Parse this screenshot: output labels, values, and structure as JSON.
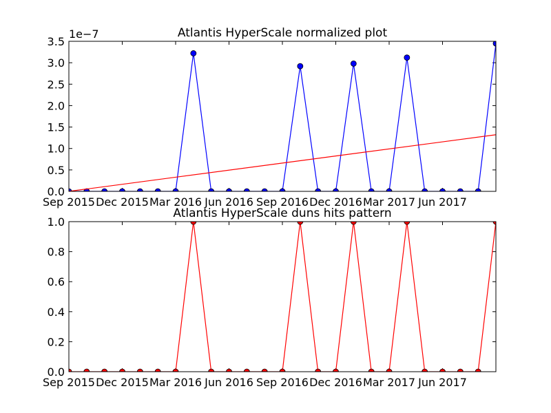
{
  "chart_data": [
    {
      "type": "line",
      "title": "Atlantis HyperScale normalized plot",
      "xlabel": "",
      "ylabel": "",
      "y_offset_label": "1e−7",
      "ylim": [
        0,
        3.5
      ],
      "yticks": [
        "0.0",
        "0.5",
        "1.0",
        "1.5",
        "2.0",
        "2.5",
        "3.0",
        "3.5"
      ],
      "xticks": [
        "Sep 2015",
        "Dec 2015",
        "Mar 2016",
        "Jun 2016",
        "Sep 2016",
        "Dec 2016",
        "Mar 2017",
        "Jun 2017"
      ],
      "xlim": [
        "2015-09-01",
        "2017-09-01"
      ],
      "grid": false,
      "series": [
        {
          "color": "#0000ff",
          "marker": "circle",
          "x": [
            "2015-09-01",
            "2015-10-01",
            "2015-11-01",
            "2015-12-01",
            "2016-01-01",
            "2016-02-01",
            "2016-03-01",
            "2016-04-01",
            "2016-05-01",
            "2016-06-01",
            "2016-07-01",
            "2016-08-01",
            "2016-09-01",
            "2016-10-01",
            "2016-11-01",
            "2016-12-01",
            "2017-01-01",
            "2017-02-01",
            "2017-03-01",
            "2017-04-01",
            "2017-05-01",
            "2017-06-01",
            "2017-07-01",
            "2017-08-01",
            "2017-09-01"
          ],
          "values": [
            0,
            0,
            0,
            0,
            0,
            0,
            0,
            3.22,
            0,
            0,
            0,
            0,
            0,
            2.92,
            0,
            0,
            2.98,
            0,
            0,
            3.12,
            0,
            0,
            0,
            0,
            3.45
          ]
        },
        {
          "color": "#ff0000",
          "marker": "none",
          "x": [
            "2015-09-01",
            "2017-09-01"
          ],
          "values": [
            0,
            1.32
          ]
        }
      ]
    },
    {
      "type": "line",
      "title": "Atlantis HyperScale duns hits pattern",
      "xlabel": "",
      "ylabel": "",
      "ylim": [
        0,
        1.0
      ],
      "yticks": [
        "0.0",
        "0.2",
        "0.4",
        "0.6",
        "0.8",
        "1.0"
      ],
      "xticks": [
        "Sep 2015",
        "Dec 2015",
        "Mar 2016",
        "Jun 2016",
        "Sep 2016",
        "Dec 2016",
        "Mar 2017",
        "Jun 2017"
      ],
      "xlim": [
        "2015-09-01",
        "2017-09-01"
      ],
      "grid": false,
      "series": [
        {
          "color": "#ff0000",
          "marker": "circle",
          "x": [
            "2015-09-01",
            "2015-10-01",
            "2015-11-01",
            "2015-12-01",
            "2016-01-01",
            "2016-02-01",
            "2016-03-01",
            "2016-04-01",
            "2016-05-01",
            "2016-06-01",
            "2016-07-01",
            "2016-08-01",
            "2016-09-01",
            "2016-10-01",
            "2016-11-01",
            "2016-12-01",
            "2017-01-01",
            "2017-02-01",
            "2017-03-01",
            "2017-04-01",
            "2017-05-01",
            "2017-06-01",
            "2017-07-01",
            "2017-08-01",
            "2017-09-01"
          ],
          "values": [
            0,
            0,
            0,
            0,
            0,
            0,
            0,
            1,
            0,
            0,
            0,
            0,
            0,
            1,
            0,
            0,
            1,
            0,
            0,
            1,
            0,
            0,
            0,
            0,
            1
          ]
        }
      ]
    }
  ]
}
